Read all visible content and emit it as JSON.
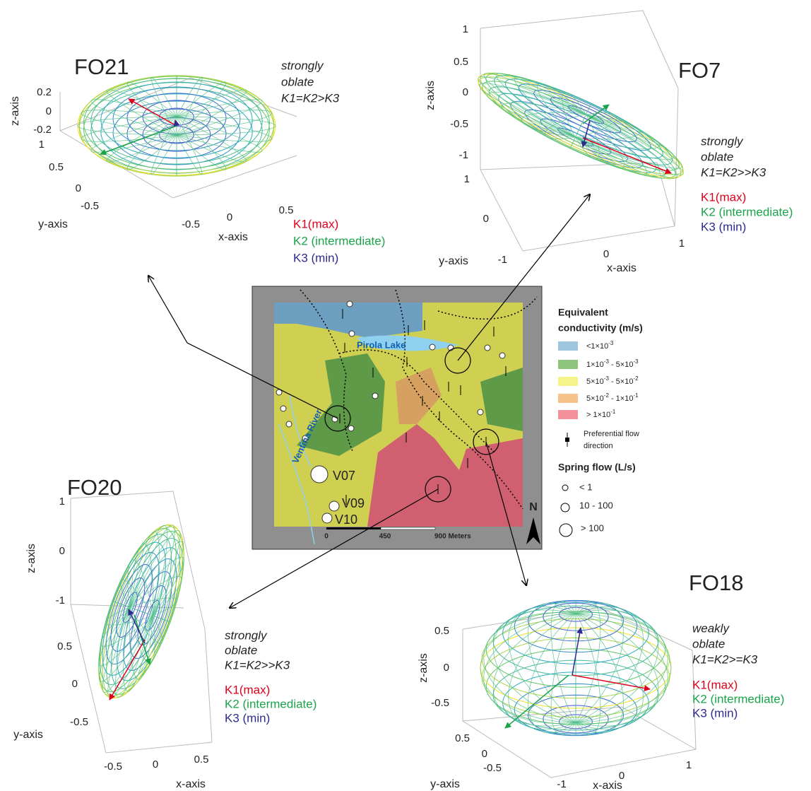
{
  "panels": [
    {
      "title": "FO21",
      "description": [
        "strongly",
        "oblate",
        "K1=K2>K3"
      ],
      "legend": [
        "K1(max)",
        "K2 (intermediate)",
        "K3 (min)"
      ],
      "z_axis": {
        "label": "z-axis",
        "ticks": [
          0.2,
          0,
          -0.2
        ]
      },
      "y_axis": {
        "label": "y-axis",
        "ticks": [
          1,
          0.5,
          0,
          -0.5
        ]
      },
      "x_axis": {
        "label": "x-axis",
        "ticks": [
          -0.5,
          0,
          0.5
        ]
      }
    },
    {
      "title": "FO7",
      "description": [
        "strongly",
        "oblate",
        "K1=K2>>K3"
      ],
      "legend": [
        "K1(max)",
        "K2 (intermediate)",
        "K3 (min)"
      ],
      "z_axis": {
        "label": "z-axis",
        "ticks": [
          1,
          0.5,
          0,
          -0.5,
          -1
        ]
      },
      "y_axis": {
        "label": "y-axis",
        "ticks": [
          1,
          0,
          -1
        ]
      },
      "x_axis": {
        "label": "x-axis",
        "ticks": [
          0,
          1
        ]
      }
    },
    {
      "title": "FO20",
      "description": [
        "strongly",
        "oblate",
        "K1=K2>>K3"
      ],
      "legend": [
        "K1(max)",
        "K2 (intermediate)",
        "K3 (min)"
      ],
      "z_axis": {
        "label": "z-axis",
        "ticks": [
          1,
          0,
          -1
        ]
      },
      "y_axis": {
        "label": "y-axis",
        "ticks": [
          0.5,
          0,
          -0.5
        ]
      },
      "x_axis": {
        "label": "x-axis",
        "ticks": [
          -0.5,
          0,
          0.5
        ]
      }
    },
    {
      "title": "FO18",
      "description": [
        "weakly",
        "oblate",
        "K1=K2>=K3"
      ],
      "legend": [
        "K1(max)",
        "K2 (intermediate)",
        "K3 (min)"
      ],
      "z_axis": {
        "label": "z-axis",
        "ticks": [
          0.5,
          0,
          -0.5
        ]
      },
      "y_axis": {
        "label": "y-axis",
        "ticks": [
          0.5,
          0,
          -0.5
        ]
      },
      "x_axis": {
        "label": "x-axis",
        "ticks": [
          -1,
          0,
          1
        ]
      }
    }
  ],
  "map": {
    "lake_label": "Pirola Lake",
    "river_label": "Ventina River",
    "spring_labels": [
      "V07",
      "V09",
      "V10"
    ],
    "scale": [
      "0",
      "450",
      "900 Meters"
    ],
    "north": "N",
    "legend_title": [
      "Equivalent",
      "conductivity (m/s)"
    ],
    "classes": [
      {
        "color": "#9ec6dc",
        "segments": [
          {
            "text": "<1×10"
          },
          {
            "sup": "-3"
          }
        ]
      },
      {
        "color": "#8fc47d",
        "segments": [
          {
            "text": "1×10"
          },
          {
            "sup": "-3"
          },
          {
            "text": " - 5×10"
          },
          {
            "sup": "-3"
          }
        ]
      },
      {
        "color": "#f4f48a",
        "segments": [
          {
            "text": "5×10"
          },
          {
            "sup": "-3"
          },
          {
            "text": " - 5×10"
          },
          {
            "sup": "-2"
          }
        ]
      },
      {
        "color": "#f6c48a",
        "segments": [
          {
            "text": "5×10"
          },
          {
            "sup": "-2"
          },
          {
            "text": " - 1×10"
          },
          {
            "sup": "-1"
          }
        ]
      },
      {
        "color": "#f4909a",
        "segments": [
          {
            "text": "> 1×10"
          },
          {
            "sup": "-1"
          }
        ]
      }
    ],
    "flow_label": [
      "Preferential flow",
      "direction"
    ],
    "spring_title": "Spring flow (L/s)",
    "spring_classes": [
      "< 1",
      "10 - 100",
      "> 100"
    ]
  }
}
